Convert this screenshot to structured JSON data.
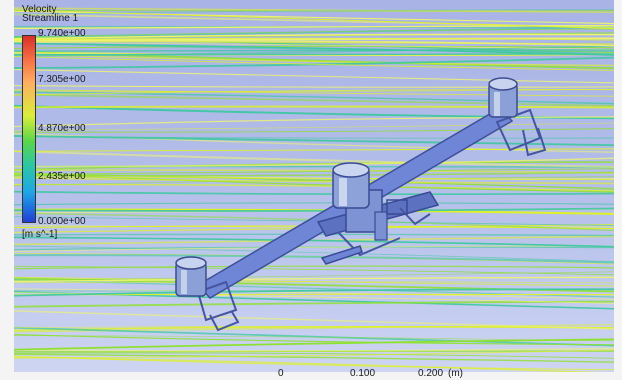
{
  "legend": {
    "title": "Velocity",
    "subtitle": "Streamline 1",
    "ticks": [
      "9.740e+00",
      "7.305e+00",
      "4.870e+00",
      "2.435e+00",
      "0.000e+00"
    ],
    "units": "[m s^-1]"
  },
  "scale_bar": {
    "labels": [
      "0",
      "0.100",
      "0.200",
      "(m)"
    ]
  },
  "colors": {
    "background": "#b3bde9",
    "streamline_primary": "#dff222",
    "streamline_secondary": "#8ee12f",
    "model": "#6e86cc"
  }
}
